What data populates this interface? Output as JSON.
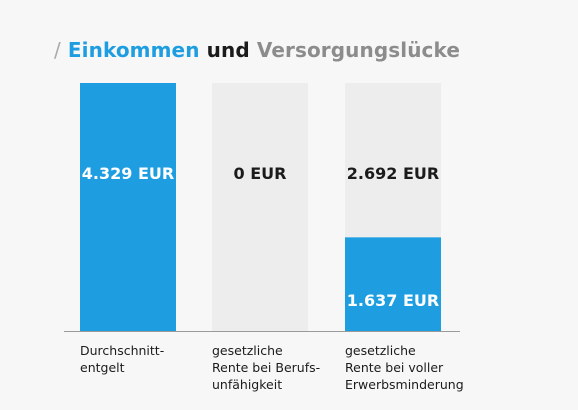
{
  "title": {
    "slash": "/",
    "part1": "Einkommen",
    "part2": "und",
    "part3": "Versorgungslücke"
  },
  "colors": {
    "bar_blue": "#1e9ee0",
    "bar_gray": "#ededed",
    "baseline": "#9a9a9a",
    "text_dark": "#1b1b1b",
    "text_white": "#ffffff"
  },
  "chart_data": {
    "type": "bar",
    "stacked": true,
    "title": "/ Einkommen und Versorgungslücke",
    "unit": "EUR",
    "ylim": [
      0,
      4329
    ],
    "grid": false,
    "legend": "none",
    "categories": [
      [
        "Durchschnitt-",
        "entgelt"
      ],
      [
        "gesetzliche",
        "Rente bei Berufs-",
        "unfähigkeit"
      ],
      [
        "gesetzliche",
        "Rente bei voller",
        "Erwerbsminderung"
      ]
    ],
    "bars": [
      {
        "segments": [
          {
            "value": 4329,
            "color": "blue",
            "label": "4.329 EUR",
            "label_color": "white"
          }
        ]
      },
      {
        "segments": [
          {
            "value": 0,
            "color": "blue",
            "label": "",
            "label_color": "white"
          },
          {
            "value": 4329,
            "color": "gray",
            "label": "0 EUR",
            "label_color": "dark"
          }
        ]
      },
      {
        "segments": [
          {
            "value": 1637,
            "color": "blue",
            "label": "1.637 EUR",
            "label_color": "white"
          },
          {
            "value": 2692,
            "color": "gray",
            "label": "2.692 EUR",
            "label_color": "dark"
          }
        ]
      }
    ]
  }
}
